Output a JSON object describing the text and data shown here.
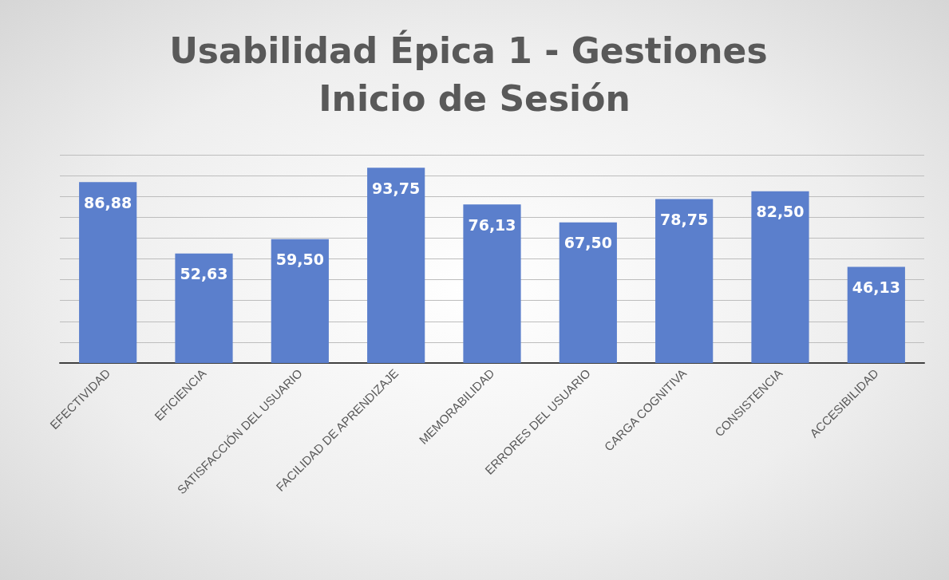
{
  "chart_data": {
    "type": "bar",
    "title": "Usabilidad Épica 1 - Gestiones Inicio de Sesión",
    "categories": [
      "EFECTIVIDAD",
      "EFICIENCIA",
      "SATISFACCIÓN DEL USUARIO",
      "FACILIDAD DE APRENDIZAJE",
      "MEMORABILIDAD",
      "ERRORES DEL USUARIO",
      "CARGA COGNITIVA",
      "CONSISTENCIA",
      "ACCESIBILIDAD"
    ],
    "values": [
      86.88,
      52.63,
      59.5,
      93.75,
      76.13,
      67.5,
      78.75,
      82.5,
      46.13
    ],
    "value_labels": [
      "86,88",
      "52,63",
      "59,50",
      "93,75",
      "76,13",
      "67,50",
      "78,75",
      "82,50",
      "46,13"
    ],
    "color": "#5b7fcc",
    "ylim": [
      0,
      100
    ],
    "yticks": [
      {
        "value": 0,
        "label": null
      },
      {
        "value": 10,
        "label": null
      },
      {
        "value": 20,
        "label": null
      },
      {
        "value": 30,
        "label": null
      },
      {
        "value": 40,
        "label": null
      },
      {
        "value": 50,
        "label": null
      },
      {
        "value": 60,
        "label": null
      },
      {
        "value": 70,
        "label": null
      },
      {
        "value": 80,
        "label": null
      },
      {
        "value": 90,
        "label": null
      },
      {
        "value": 100,
        "label": null
      }
    ],
    "grid": "y",
    "tick_labels": "x"
  }
}
